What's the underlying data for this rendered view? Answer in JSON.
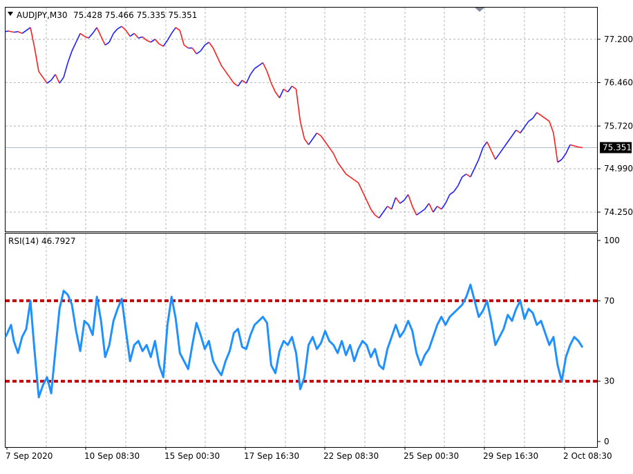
{
  "header": {
    "symbol_tf": "AUDJPY,M30",
    "ohlc": "75.428 75.466 75.335 75.351",
    "menu_icon": "triangle-down-icon"
  },
  "indicator": {
    "label": "RSI(14) 46.7927"
  },
  "colors": {
    "bull": "#1c1cff",
    "bear": "#ff1c1c",
    "rsi": "#1e90ff",
    "level": "#c00000",
    "bid_line": "#a9b7c6"
  },
  "chart_data": [
    {
      "type": "line",
      "name": "price",
      "ylabel": "",
      "ylim": [
        73.92,
        77.74
      ],
      "yticks": [
        "77.200",
        "76.460",
        "75.720",
        "74.990",
        "74.250"
      ],
      "yticks_values": [
        77.2,
        76.46,
        75.72,
        74.99,
        74.25
      ],
      "current_price_label": "75.351",
      "current_price": 75.351,
      "x": [
        0,
        4,
        8,
        12,
        18,
        24,
        30,
        36,
        42,
        48,
        54,
        60,
        66,
        72,
        78,
        84,
        90,
        96,
        102,
        108,
        114,
        120,
        126,
        132,
        138,
        144,
        150,
        156,
        162,
        168,
        174,
        180,
        186,
        192,
        198,
        204,
        210,
        216,
        222,
        228,
        234,
        240,
        246,
        252,
        258,
        264,
        270,
        276,
        282,
        288,
        294,
        300,
        306,
        312,
        318,
        324,
        330,
        336,
        342,
        348,
        354,
        360,
        366,
        372,
        378,
        384,
        390,
        396,
        402,
        408,
        414,
        420,
        426,
        432,
        438,
        444,
        450,
        456,
        462,
        468,
        474,
        480,
        486,
        492,
        498,
        504,
        510,
        516,
        522,
        528,
        534,
        540,
        546,
        552,
        558,
        564,
        570,
        576,
        582,
        588,
        594,
        600,
        606,
        612,
        618,
        624,
        630,
        636,
        642,
        648,
        654,
        660,
        666,
        672,
        678,
        684,
        690,
        696,
        702,
        708,
        714,
        720,
        726,
        732,
        738,
        744,
        750,
        756,
        762,
        768,
        774,
        780,
        786,
        792,
        798,
        804,
        810,
        816,
        822,
        828,
        834
      ],
      "values": [
        77.33,
        77.34,
        77.33,
        77.32,
        77.33,
        77.3,
        77.35,
        77.4,
        77.05,
        76.65,
        76.55,
        76.45,
        76.5,
        76.6,
        76.45,
        76.55,
        76.8,
        77.0,
        77.15,
        77.3,
        77.25,
        77.22,
        77.3,
        77.4,
        77.25,
        77.1,
        77.15,
        77.3,
        77.38,
        77.42,
        77.35,
        77.25,
        77.3,
        77.22,
        77.24,
        77.18,
        77.15,
        77.2,
        77.12,
        77.08,
        77.18,
        77.3,
        77.4,
        77.35,
        77.1,
        77.05,
        77.05,
        76.95,
        77.0,
        77.1,
        77.15,
        77.05,
        76.9,
        76.75,
        76.65,
        76.55,
        76.45,
        76.4,
        76.5,
        76.45,
        76.6,
        76.7,
        76.75,
        76.8,
        76.65,
        76.45,
        76.3,
        76.2,
        76.35,
        76.3,
        76.4,
        76.35,
        75.8,
        75.5,
        75.4,
        75.5,
        75.6,
        75.55,
        75.45,
        75.35,
        75.25,
        75.1,
        75.0,
        74.9,
        74.85,
        74.8,
        74.75,
        74.6,
        74.45,
        74.3,
        74.2,
        74.15,
        74.25,
        74.35,
        74.3,
        74.5,
        74.4,
        74.45,
        74.55,
        74.35,
        74.2,
        74.25,
        74.3,
        74.4,
        74.25,
        74.35,
        74.3,
        74.4,
        74.55,
        74.6,
        74.7,
        74.85,
        74.9,
        74.85,
        75.0,
        75.15,
        75.35,
        75.45,
        75.3,
        75.15,
        75.25,
        75.35,
        75.45,
        75.55,
        75.65,
        75.6,
        75.7,
        75.8,
        75.85,
        75.95,
        75.9,
        75.85,
        75.8,
        75.6,
        75.1,
        75.15,
        75.25,
        75.4,
        75.38,
        75.36,
        75.351
      ]
    },
    {
      "type": "line",
      "name": "rsi",
      "ylim": [
        0,
        100
      ],
      "yticks": [
        "100",
        "70",
        "30",
        "0"
      ],
      "yticks_values": [
        100,
        70,
        30,
        0
      ],
      "levels": [
        70,
        30
      ],
      "x": [
        0,
        4,
        8,
        12,
        18,
        24,
        30,
        36,
        42,
        48,
        54,
        60,
        66,
        72,
        78,
        84,
        90,
        96,
        102,
        108,
        114,
        120,
        126,
        132,
        138,
        144,
        150,
        156,
        162,
        168,
        174,
        180,
        186,
        192,
        198,
        204,
        210,
        216,
        222,
        228,
        234,
        240,
        246,
        252,
        258,
        264,
        270,
        276,
        282,
        288,
        294,
        300,
        306,
        312,
        318,
        324,
        330,
        336,
        342,
        348,
        354,
        360,
        366,
        372,
        378,
        384,
        390,
        396,
        402,
        408,
        414,
        420,
        426,
        432,
        438,
        444,
        450,
        456,
        462,
        468,
        474,
        480,
        486,
        492,
        498,
        504,
        510,
        516,
        522,
        528,
        534,
        540,
        546,
        552,
        558,
        564,
        570,
        576,
        582,
        588,
        594,
        600,
        606,
        612,
        618,
        624,
        630,
        636,
        642,
        648,
        654,
        660,
        666,
        672,
        678,
        684,
        690,
        696,
        702,
        708,
        714,
        720,
        726,
        732,
        738,
        744,
        750,
        756,
        762,
        768,
        774,
        780,
        786,
        792,
        798,
        804,
        810,
        816,
        822,
        828,
        834
      ],
      "values": [
        52,
        55,
        58,
        50,
        44,
        52,
        56,
        70,
        45,
        22,
        28,
        32,
        24,
        45,
        66,
        75,
        73,
        68,
        55,
        45,
        60,
        58,
        53,
        72,
        60,
        42,
        48,
        60,
        66,
        71,
        55,
        40,
        48,
        50,
        45,
        48,
        42,
        50,
        38,
        32,
        58,
        72,
        61,
        44,
        40,
        36,
        48,
        59,
        53,
        46,
        50,
        40,
        36,
        33,
        40,
        45,
        54,
        56,
        47,
        46,
        53,
        58,
        60,
        62,
        59,
        38,
        34,
        45,
        50,
        48,
        52,
        44,
        26,
        32,
        48,
        52,
        46,
        49,
        55,
        50,
        48,
        44,
        50,
        43,
        48,
        40,
        46,
        50,
        48,
        42,
        46,
        38,
        36,
        46,
        52,
        58,
        52,
        55,
        60,
        55,
        44,
        38,
        43,
        46,
        52,
        58,
        62,
        58,
        62,
        64,
        66,
        68,
        72,
        78,
        70,
        62,
        65,
        70,
        60,
        48,
        52,
        56,
        63,
        60,
        66,
        70,
        61,
        66,
        64,
        58,
        60,
        54,
        48,
        52,
        38,
        30,
        42,
        48,
        52,
        50,
        46.79
      ]
    }
  ],
  "time_axis": {
    "labels": [
      "7 Sep 2020",
      "10 Sep 08:30",
      "15 Sep 00:30",
      "17 Sep 16:30",
      "22 Sep 08:30",
      "25 Sep 00:30",
      "29 Sep 16:30",
      "2 Oct 08:30"
    ]
  }
}
